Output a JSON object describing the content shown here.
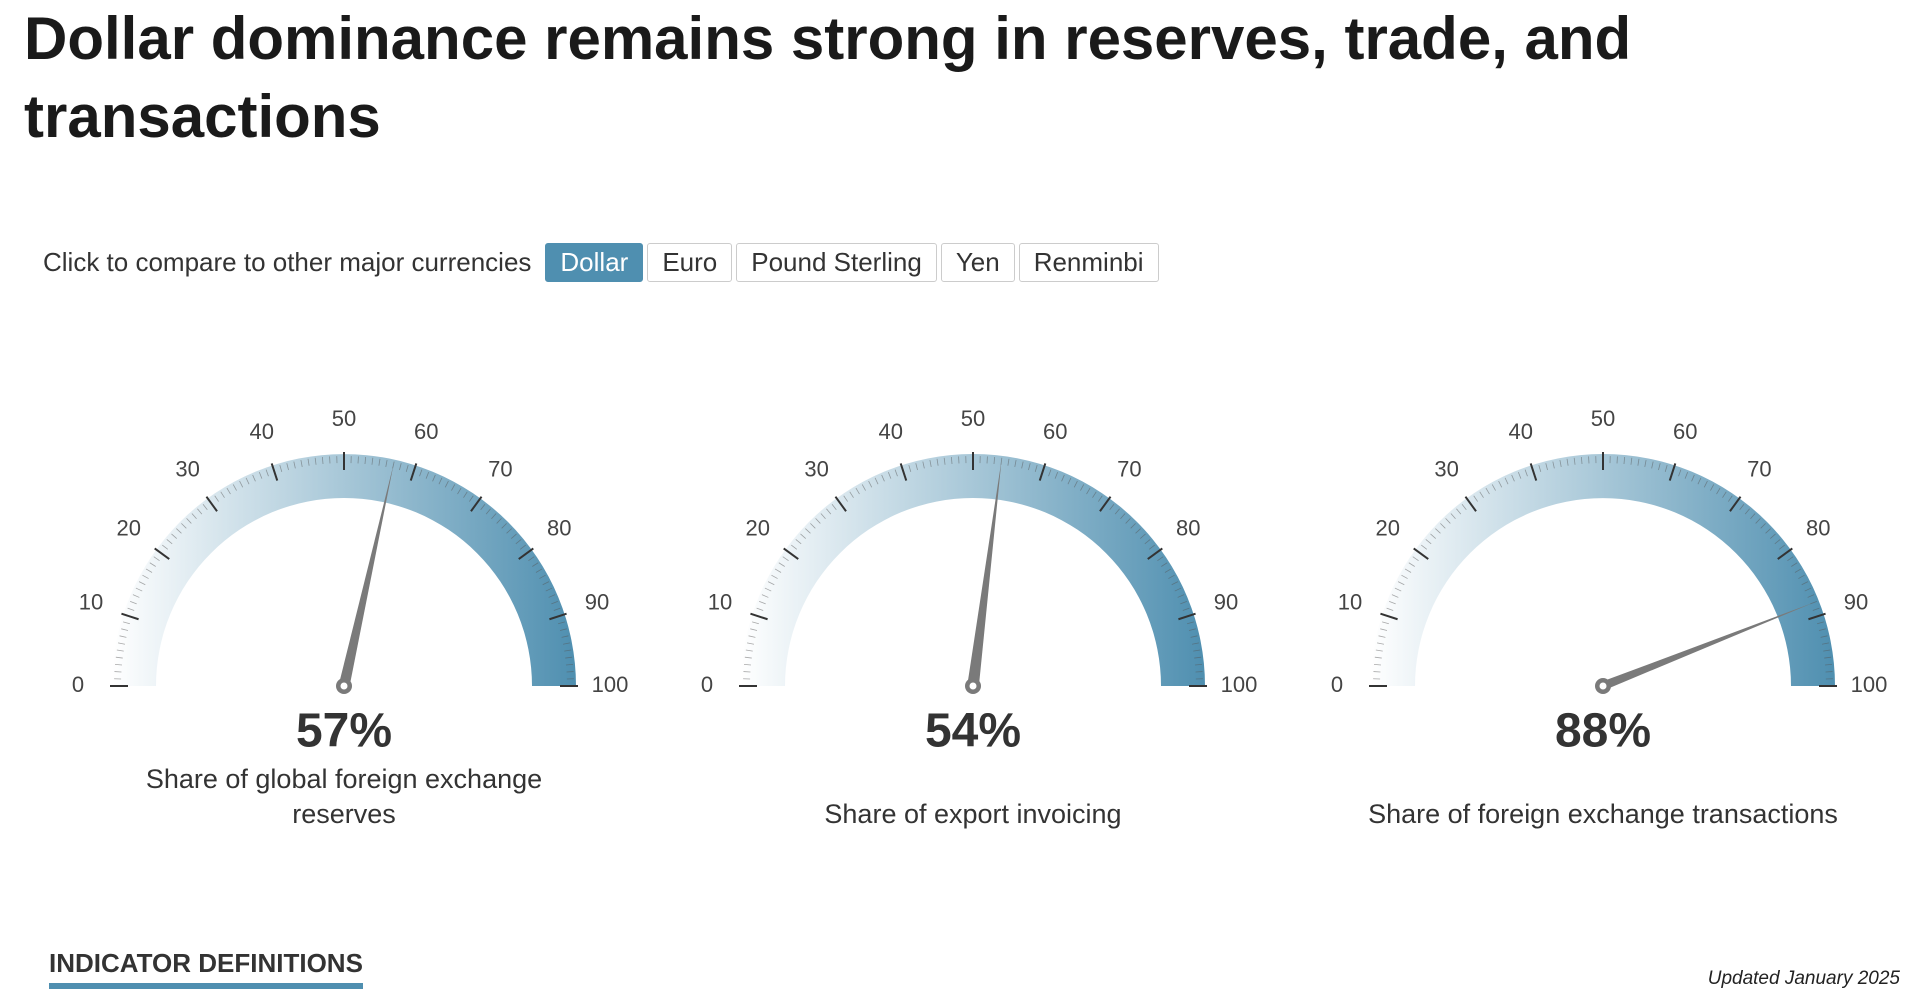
{
  "title": "Dollar dominance remains strong in reserves, trade, and transactions",
  "controls": {
    "label": "Click to compare to other major currencies",
    "buttons": [
      "Dollar",
      "Euro",
      "Pound Sterling",
      "Yen",
      "Renminbi"
    ],
    "active": 0
  },
  "chart_data": [
    {
      "type": "gauge",
      "values": [
        57
      ],
      "value_labels": [
        "57%"
      ],
      "caption": "Share of global foreign exchange reserves",
      "ylim": [
        0,
        100
      ],
      "yticks": [
        0,
        10,
        20,
        30,
        40,
        50,
        60,
        70,
        80,
        90,
        100
      ],
      "color": "#4f8fb0",
      "needle_color": "#7a7a7a"
    },
    {
      "type": "gauge",
      "values": [
        54
      ],
      "value_labels": [
        "54%"
      ],
      "caption": "Share of export invoicing",
      "ylim": [
        0,
        100
      ],
      "yticks": [
        0,
        10,
        20,
        30,
        40,
        50,
        60,
        70,
        80,
        90,
        100
      ],
      "color": "#4f8fb0",
      "needle_color": "#7a7a7a"
    },
    {
      "type": "gauge",
      "values": [
        88
      ],
      "value_labels": [
        "88%"
      ],
      "caption": "Share of foreign exchange transactions",
      "ylim": [
        0,
        100
      ],
      "yticks": [
        0,
        10,
        20,
        30,
        40,
        50,
        60,
        70,
        80,
        90,
        100
      ],
      "color": "#4f8fb0",
      "needle_color": "#7a7a7a"
    }
  ],
  "footer": {
    "definitions": "INDICATOR DEFINITIONS",
    "updated": "Updated January 2025"
  }
}
